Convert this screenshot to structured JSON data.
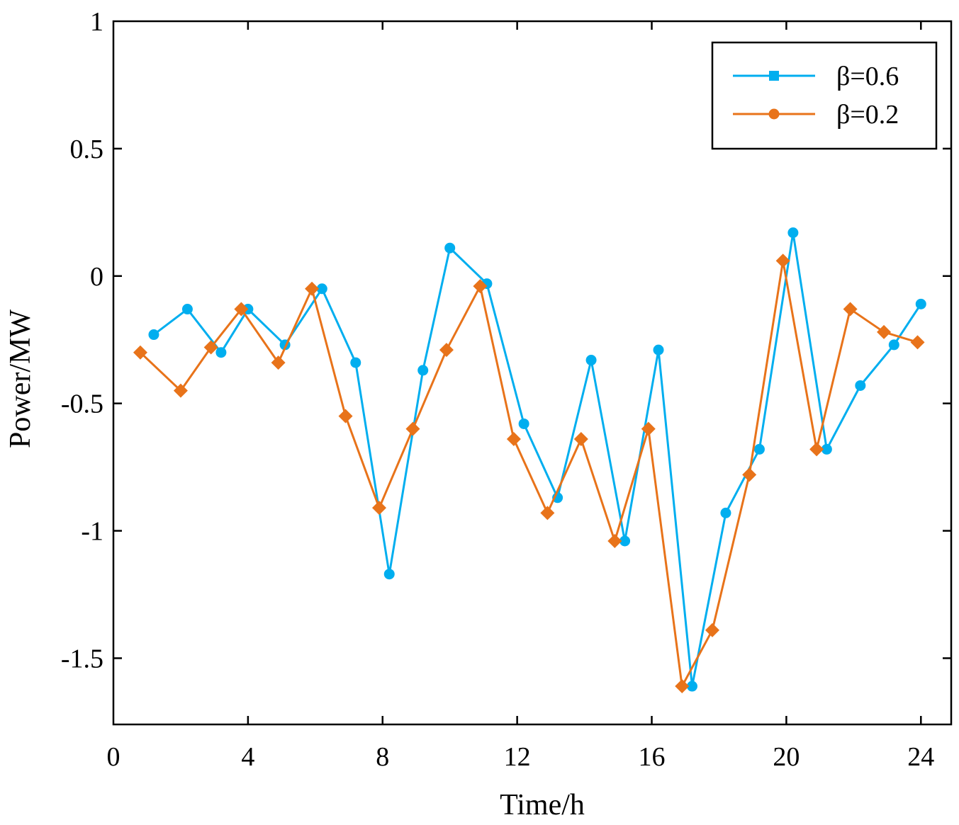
{
  "chart_data": {
    "type": "line",
    "title": "",
    "xlabel": "Time/h",
    "ylabel": "Power/MW",
    "xlim": [
      0,
      24.9
    ],
    "ylim": [
      -1.76,
      1.0
    ],
    "xticks": [
      0,
      4,
      8,
      12,
      16,
      20,
      24
    ],
    "xtick_labels": [
      "0",
      "4",
      "8",
      "12",
      "16",
      "20",
      "24"
    ],
    "yticks": [
      1,
      0.5,
      0,
      -0.5,
      -1,
      -1.5
    ],
    "ytick_labels": [
      "1",
      "0.5",
      "0",
      "-0.5",
      "-1",
      "-1.5"
    ],
    "grid": false,
    "legend_position": "top-right",
    "series": [
      {
        "name": "β=0.6",
        "color": "#00AEEF",
        "marker": "circle",
        "legend_marker": "square",
        "x": [
          1.2,
          2.2,
          3.2,
          4.0,
          5.1,
          6.2,
          7.2,
          8.2,
          9.2,
          10.0,
          11.1,
          12.2,
          13.2,
          14.2,
          15.2,
          16.2,
          17.2,
          18.2,
          19.2,
          20.2,
          21.2,
          22.2,
          23.2,
          24.0
        ],
        "values": [
          -0.23,
          -0.13,
          -0.3,
          -0.13,
          -0.27,
          -0.05,
          -0.34,
          -1.17,
          -0.37,
          0.11,
          -0.03,
          -0.58,
          -0.87,
          -0.33,
          -1.04,
          -0.29,
          -1.61,
          -0.93,
          -0.68,
          0.17,
          -0.68,
          -0.43,
          -0.27,
          -0.11
        ]
      },
      {
        "name": "β=0.2",
        "color": "#E8731A",
        "marker": "diamond",
        "legend_marker": "circle",
        "x": [
          0.8,
          2.0,
          2.9,
          3.8,
          4.9,
          5.9,
          6.9,
          7.9,
          8.9,
          9.9,
          10.9,
          11.9,
          12.9,
          13.9,
          14.9,
          15.9,
          16.9,
          17.8,
          18.9,
          19.9,
          20.9,
          21.9,
          22.9,
          23.9
        ],
        "values": [
          -0.3,
          -0.45,
          -0.28,
          -0.13,
          -0.34,
          -0.05,
          -0.55,
          -0.91,
          -0.6,
          -0.29,
          -0.04,
          -0.64,
          -0.93,
          -0.64,
          -1.04,
          -0.6,
          -1.61,
          -1.39,
          -0.78,
          0.06,
          -0.68,
          -0.13,
          -0.22,
          -0.26
        ]
      }
    ]
  }
}
